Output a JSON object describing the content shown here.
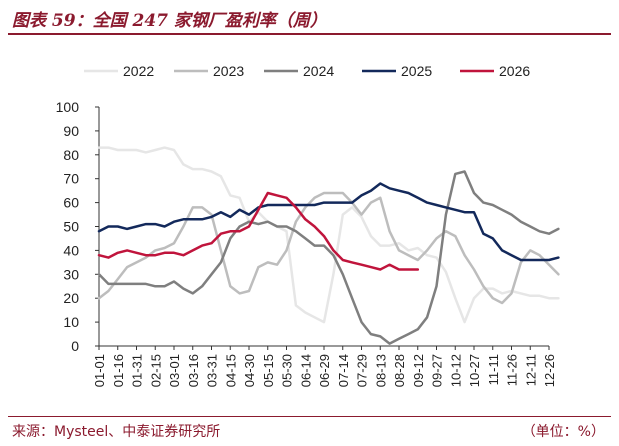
{
  "header": {
    "title": "图表 59：全国 247 家钢厂盈利率（周）"
  },
  "footer": {
    "source": "来源：Mysteel、中泰证券研究所",
    "unit": "（单位：%）"
  },
  "chart_data": {
    "type": "line",
    "title": "图表 59：全国 247 家钢厂盈利率（周）",
    "xlabel": "",
    "ylabel": "",
    "ylim": [
      0,
      100
    ],
    "yticks": [
      0,
      10,
      20,
      30,
      40,
      50,
      60,
      70,
      80,
      90,
      100
    ],
    "categories": [
      "01-01",
      "01-16",
      "01-31",
      "02-15",
      "03-01",
      "03-16",
      "03-31",
      "04-15",
      "04-30",
      "05-15",
      "05-30",
      "06-14",
      "06-29",
      "07-14",
      "07-29",
      "08-13",
      "08-28",
      "09-12",
      "09-27",
      "10-12",
      "10-27",
      "11-11",
      "11-26",
      "12-11",
      "12-26"
    ],
    "legend_position": "top",
    "series": [
      {
        "name": "2022",
        "color": "#e6e6e6",
        "x": [
          0,
          0.5,
          1,
          1.5,
          2,
          2.5,
          3,
          3.5,
          4,
          4.5,
          5,
          5.5,
          6,
          6.5,
          7,
          7.5,
          8,
          8.5,
          9,
          9.5,
          10,
          10.5,
          11,
          11.5,
          12,
          12.5,
          13,
          13.5,
          14,
          14.5,
          15,
          15.5,
          16,
          16.5,
          17,
          17.5,
          18,
          18.5,
          19,
          19.5,
          20,
          20.5,
          21,
          21.5,
          22,
          22.5,
          23,
          23.5,
          24,
          24.5
        ],
        "values": [
          83,
          83,
          82,
          82,
          82,
          81,
          82,
          83,
          82,
          76,
          74,
          74,
          73,
          71,
          63,
          62,
          52,
          56,
          52,
          50,
          48,
          17,
          14,
          12,
          10,
          30,
          55,
          58,
          54,
          46,
          42,
          42,
          43,
          40,
          41,
          38,
          37,
          31,
          20,
          10,
          20,
          24,
          24,
          22,
          23,
          22,
          21,
          21,
          20,
          20
        ]
      },
      {
        "name": "2023",
        "color": "#bdbdbd",
        "x": [
          0,
          0.5,
          1,
          1.5,
          2,
          2.5,
          3,
          3.5,
          4,
          4.5,
          5,
          5.5,
          6,
          6.5,
          7,
          7.5,
          8,
          8.5,
          9,
          9.5,
          10,
          10.5,
          11,
          11.5,
          12,
          12.5,
          13,
          13.5,
          14,
          14.5,
          15,
          15.5,
          16,
          16.5,
          17,
          17.5,
          18,
          18.5,
          19,
          19.5,
          20,
          20.5,
          21,
          21.5,
          22,
          22.5,
          23,
          23.5,
          24,
          24.5
        ],
        "values": [
          20,
          23,
          28,
          33,
          35,
          37,
          40,
          41,
          43,
          50,
          58,
          58,
          55,
          40,
          25,
          22,
          23,
          33,
          35,
          34,
          40,
          52,
          58,
          62,
          64,
          64,
          64,
          60,
          55,
          60,
          62,
          48,
          40,
          38,
          36,
          40,
          45,
          48,
          46,
          38,
          32,
          25,
          20,
          18,
          22,
          35,
          40,
          38,
          34,
          30
        ]
      },
      {
        "name": "2024",
        "color": "#7f7f7f",
        "x": [
          0,
          0.5,
          1,
          1.5,
          2,
          2.5,
          3,
          3.5,
          4,
          4.5,
          5,
          5.5,
          6,
          6.5,
          7,
          7.5,
          8,
          8.5,
          9,
          9.5,
          10,
          10.5,
          11,
          11.5,
          12,
          12.5,
          13,
          13.5,
          14,
          14.5,
          15,
          15.5,
          16,
          16.5,
          17,
          17.5,
          18,
          18.5,
          19,
          19.5,
          20,
          20.5,
          21,
          21.5,
          22,
          22.5,
          23,
          23.5,
          24,
          24.5
        ],
        "values": [
          30,
          26,
          26,
          26,
          26,
          26,
          25,
          25,
          27,
          24,
          22,
          25,
          30,
          35,
          45,
          50,
          52,
          51,
          52,
          50,
          50,
          48,
          45,
          42,
          42,
          38,
          30,
          20,
          10,
          5,
          4,
          1,
          3,
          5,
          7,
          12,
          25,
          55,
          72,
          73,
          64,
          60,
          59,
          57,
          55,
          52,
          50,
          48,
          47,
          49
        ]
      },
      {
        "name": "2025",
        "color": "#13295b",
        "x": [
          0,
          0.5,
          1,
          1.5,
          2,
          2.5,
          3,
          3.5,
          4,
          4.5,
          5,
          5.5,
          6,
          6.5,
          7,
          7.5,
          8,
          8.5,
          9,
          9.5,
          10,
          10.5,
          11,
          11.5,
          12,
          12.5,
          13,
          13.5,
          14,
          14.5,
          15,
          15.5,
          16,
          16.5,
          17,
          17.5,
          18,
          18.5,
          19,
          19.5,
          20,
          20.5,
          21,
          21.5,
          22,
          22.5,
          23,
          23.5,
          24,
          24.5
        ],
        "values": [
          48,
          50,
          50,
          49,
          50,
          51,
          51,
          50,
          52,
          53,
          53,
          53,
          54,
          56,
          54,
          57,
          55,
          58,
          59,
          59,
          59,
          59,
          59,
          59,
          60,
          60,
          60,
          60,
          63,
          65,
          68,
          66,
          65,
          64,
          62,
          60,
          59,
          58,
          57,
          56,
          56,
          47,
          45,
          40,
          38,
          36,
          36,
          36,
          36,
          37
        ]
      },
      {
        "name": "2026",
        "color": "#c0143c",
        "x": [
          0,
          0.5,
          1,
          1.5,
          2,
          2.5,
          3,
          3.5,
          4,
          4.5,
          5,
          5.5,
          6,
          6.5,
          7,
          7.5,
          8,
          8.5,
          9,
          9.5,
          10,
          10.5,
          11,
          11.5,
          12,
          12.5,
          13,
          13.5,
          14,
          14.5,
          15,
          15.5,
          16,
          16.5,
          17
        ],
        "values": [
          38,
          37,
          39,
          40,
          39,
          38,
          38,
          39,
          39,
          38,
          40,
          42,
          43,
          47,
          48,
          48,
          50,
          57,
          64,
          63,
          62,
          58,
          53,
          50,
          46,
          40,
          36,
          35,
          34,
          33,
          32,
          34,
          32,
          32,
          32
        ]
      }
    ]
  }
}
